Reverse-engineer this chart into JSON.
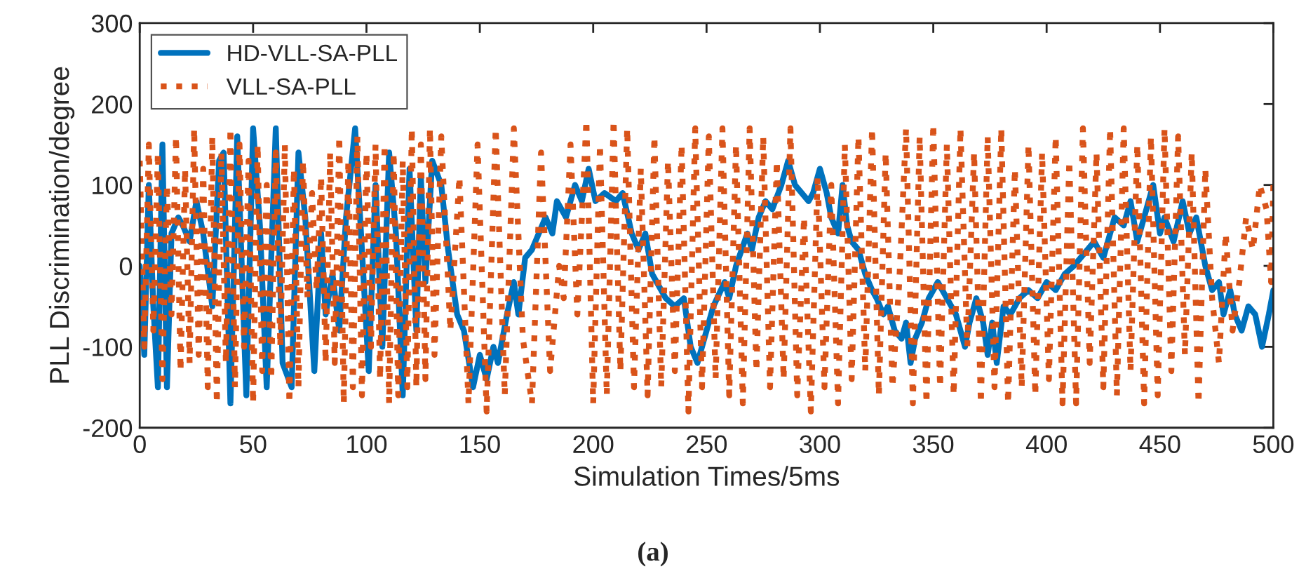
{
  "chart_data": {
    "type": "line",
    "xlabel": "Simulation Times/5ms",
    "ylabel": "PLL Discrimination/degree",
    "annotations": [
      "(a)"
    ],
    "xlim": [
      0,
      500
    ],
    "xticks": [
      0,
      50,
      100,
      150,
      200,
      250,
      300,
      350,
      400,
      450,
      500
    ],
    "ylim": [
      -200,
      300
    ],
    "yticks": [
      -200,
      -100,
      0,
      100,
      200,
      300
    ],
    "grid": false,
    "legend": "top left",
    "marker": "none",
    "series": [
      {
        "name": "HD-VLL-SA-PLL",
        "color": "#0072bd",
        "line_style": "solid",
        "x": [
          0,
          2,
          4,
          6,
          8,
          10,
          12,
          14,
          17,
          19,
          22,
          25,
          28,
          32,
          35,
          37,
          40,
          43,
          47,
          50,
          53,
          56,
          60,
          63,
          67,
          70,
          73,
          77,
          80,
          82,
          85,
          88,
          91,
          95,
          98,
          101,
          104,
          107,
          110,
          113,
          116,
          119,
          122,
          124,
          126,
          129,
          133,
          136,
          140,
          143,
          147,
          150,
          153,
          156,
          158,
          162,
          165,
          167,
          170,
          173,
          176,
          179,
          182,
          184,
          188,
          192,
          195,
          198,
          201,
          205,
          210,
          213,
          217,
          220,
          223,
          226,
          228,
          232,
          236,
          240,
          243,
          246,
          250,
          253,
          258,
          260,
          263,
          268,
          270,
          273,
          276,
          279,
          283,
          286,
          289,
          292,
          295,
          297,
          300,
          303,
          305,
          308,
          310,
          312,
          314,
          317,
          320,
          323,
          325,
          328,
          330,
          333,
          336,
          338,
          340,
          342,
          345,
          348,
          352,
          356,
          360,
          362,
          364,
          366,
          369,
          372,
          374,
          376,
          378,
          381,
          384,
          388,
          392,
          396,
          400,
          404,
          408,
          412,
          415,
          418,
          421,
          425,
          430,
          434,
          437,
          440,
          443,
          447,
          450,
          452,
          456,
          460,
          463,
          466,
          470,
          473,
          476,
          478,
          481,
          483,
          486,
          489,
          492,
          495,
          498,
          500
        ],
        "values": [
          0,
          -110,
          100,
          -50,
          -150,
          150,
          -150,
          40,
          60,
          50,
          30,
          80,
          40,
          -50,
          130,
          140,
          -170,
          160,
          -160,
          170,
          50,
          -150,
          170,
          -120,
          -150,
          140,
          60,
          -130,
          40,
          -60,
          -10,
          -80,
          60,
          170,
          20,
          -130,
          100,
          -100,
          140,
          40,
          -160,
          120,
          -80,
          110,
          -20,
          130,
          100,
          20,
          -60,
          -80,
          -150,
          -110,
          -140,
          -100,
          -120,
          -60,
          -20,
          -60,
          10,
          20,
          40,
          60,
          40,
          80,
          60,
          100,
          80,
          120,
          80,
          90,
          80,
          90,
          40,
          20,
          40,
          -10,
          -20,
          -40,
          -50,
          -40,
          -100,
          -120,
          -80,
          -50,
          -20,
          -40,
          0,
          40,
          20,
          60,
          80,
          70,
          100,
          130,
          100,
          90,
          80,
          90,
          120,
          90,
          60,
          40,
          100,
          50,
          30,
          20,
          -10,
          -30,
          -40,
          -60,
          -50,
          -80,
          -90,
          -70,
          -120,
          -90,
          -70,
          -40,
          -20,
          -40,
          -60,
          -80,
          -100,
          -70,
          -40,
          -70,
          -110,
          -70,
          -120,
          -50,
          -60,
          -40,
          -30,
          -40,
          -20,
          -30,
          -10,
          0,
          10,
          20,
          30,
          10,
          60,
          50,
          80,
          30,
          60,
          100,
          40,
          60,
          30,
          80,
          40,
          60,
          0,
          -30,
          -20,
          -60,
          -30,
          -60,
          -80,
          -50,
          -60,
          -100,
          -60,
          -30
        ]
      },
      {
        "name": "VLL-SA-PLL",
        "color": "#d95319",
        "line_style": "dotted",
        "x": [
          0,
          2,
          4,
          6,
          8,
          10,
          12,
          14,
          16,
          18,
          20,
          22,
          24,
          26,
          28,
          30,
          32,
          34,
          36,
          38,
          40,
          42,
          44,
          46,
          48,
          50,
          52,
          54,
          56,
          58,
          60,
          62,
          64,
          66,
          68,
          70,
          72,
          74,
          76,
          78,
          80,
          82,
          84,
          86,
          88,
          90,
          92,
          94,
          96,
          98,
          100,
          102,
          104,
          106,
          108,
          110,
          112,
          114,
          116,
          118,
          120,
          122,
          124,
          126,
          128,
          130,
          133,
          137,
          141,
          145,
          149,
          153,
          157,
          161,
          165,
          169,
          173,
          177,
          181,
          185,
          187,
          190,
          193,
          197,
          200,
          203,
          206,
          209,
          212,
          215,
          218,
          221,
          224,
          227,
          230,
          233,
          236,
          239,
          242,
          245,
          248,
          251,
          254,
          257,
          260,
          263,
          266,
          269,
          272,
          275,
          278,
          281,
          284,
          287,
          290,
          293,
          296,
          299,
          302,
          305,
          308,
          311,
          314,
          317,
          320,
          323,
          326,
          329,
          332,
          335,
          338,
          341,
          344,
          347,
          350,
          353,
          356,
          359,
          362,
          365,
          368,
          371,
          374,
          377,
          380,
          383,
          386,
          389,
          392,
          395,
          398,
          401,
          404,
          407,
          410,
          413,
          416,
          419,
          422,
          425,
          428,
          431,
          434,
          437,
          440,
          443,
          446,
          449,
          452,
          455,
          458,
          461,
          464,
          467,
          470,
          473,
          476,
          479,
          482,
          485,
          488,
          491,
          494,
          497,
          499,
          500
        ],
        "values": [
          130,
          -100,
          150,
          -80,
          140,
          -140,
          100,
          -60,
          160,
          -130,
          120,
          -120,
          170,
          -110,
          120,
          -150,
          160,
          -170,
          140,
          -120,
          170,
          -150,
          150,
          -100,
          130,
          -170,
          150,
          -130,
          100,
          -140,
          140,
          -100,
          150,
          -170,
          120,
          -150,
          130,
          -40,
          90,
          -30,
          110,
          -120,
          140,
          -120,
          160,
          -170,
          130,
          -150,
          160,
          -160,
          140,
          -100,
          150,
          -140,
          150,
          -170,
          140,
          -160,
          130,
          -150,
          170,
          -150,
          150,
          -140,
          170,
          -110,
          160,
          -80,
          110,
          -170,
          150,
          -180,
          170,
          -160,
          170,
          -90,
          -170,
          140,
          -130,
          0,
          -40,
          150,
          -60,
          180,
          -170,
          150,
          -160,
          180,
          -130,
          170,
          -150,
          120,
          -160,
          160,
          -150,
          130,
          -130,
          150,
          -180,
          170,
          -150,
          160,
          -140,
          170,
          -160,
          150,
          -170,
          170,
          -130,
          160,
          -150,
          130,
          -140,
          170,
          -160,
          60,
          -180,
          110,
          -150,
          100,
          -170,
          150,
          -140,
          160,
          -130,
          170,
          -160,
          140,
          -150,
          -20,
          170,
          -170,
          160,
          -170,
          175,
          -150,
          150,
          -160,
          170,
          -100,
          140,
          -170,
          160,
          -150,
          170,
          -170,
          120,
          -150,
          150,
          -160,
          140,
          -140,
          160,
          -170,
          130,
          -170,
          170,
          -120,
          140,
          -150,
          170,
          -160,
          170,
          -130,
          150,
          -170,
          160,
          -160,
          170,
          -130,
          160,
          -110,
          140,
          -170,
          120,
          -40,
          -120,
          40,
          -80,
          -20,
          60,
          20,
          100,
          70,
          -20,
          100
        ]
      }
    ]
  }
}
